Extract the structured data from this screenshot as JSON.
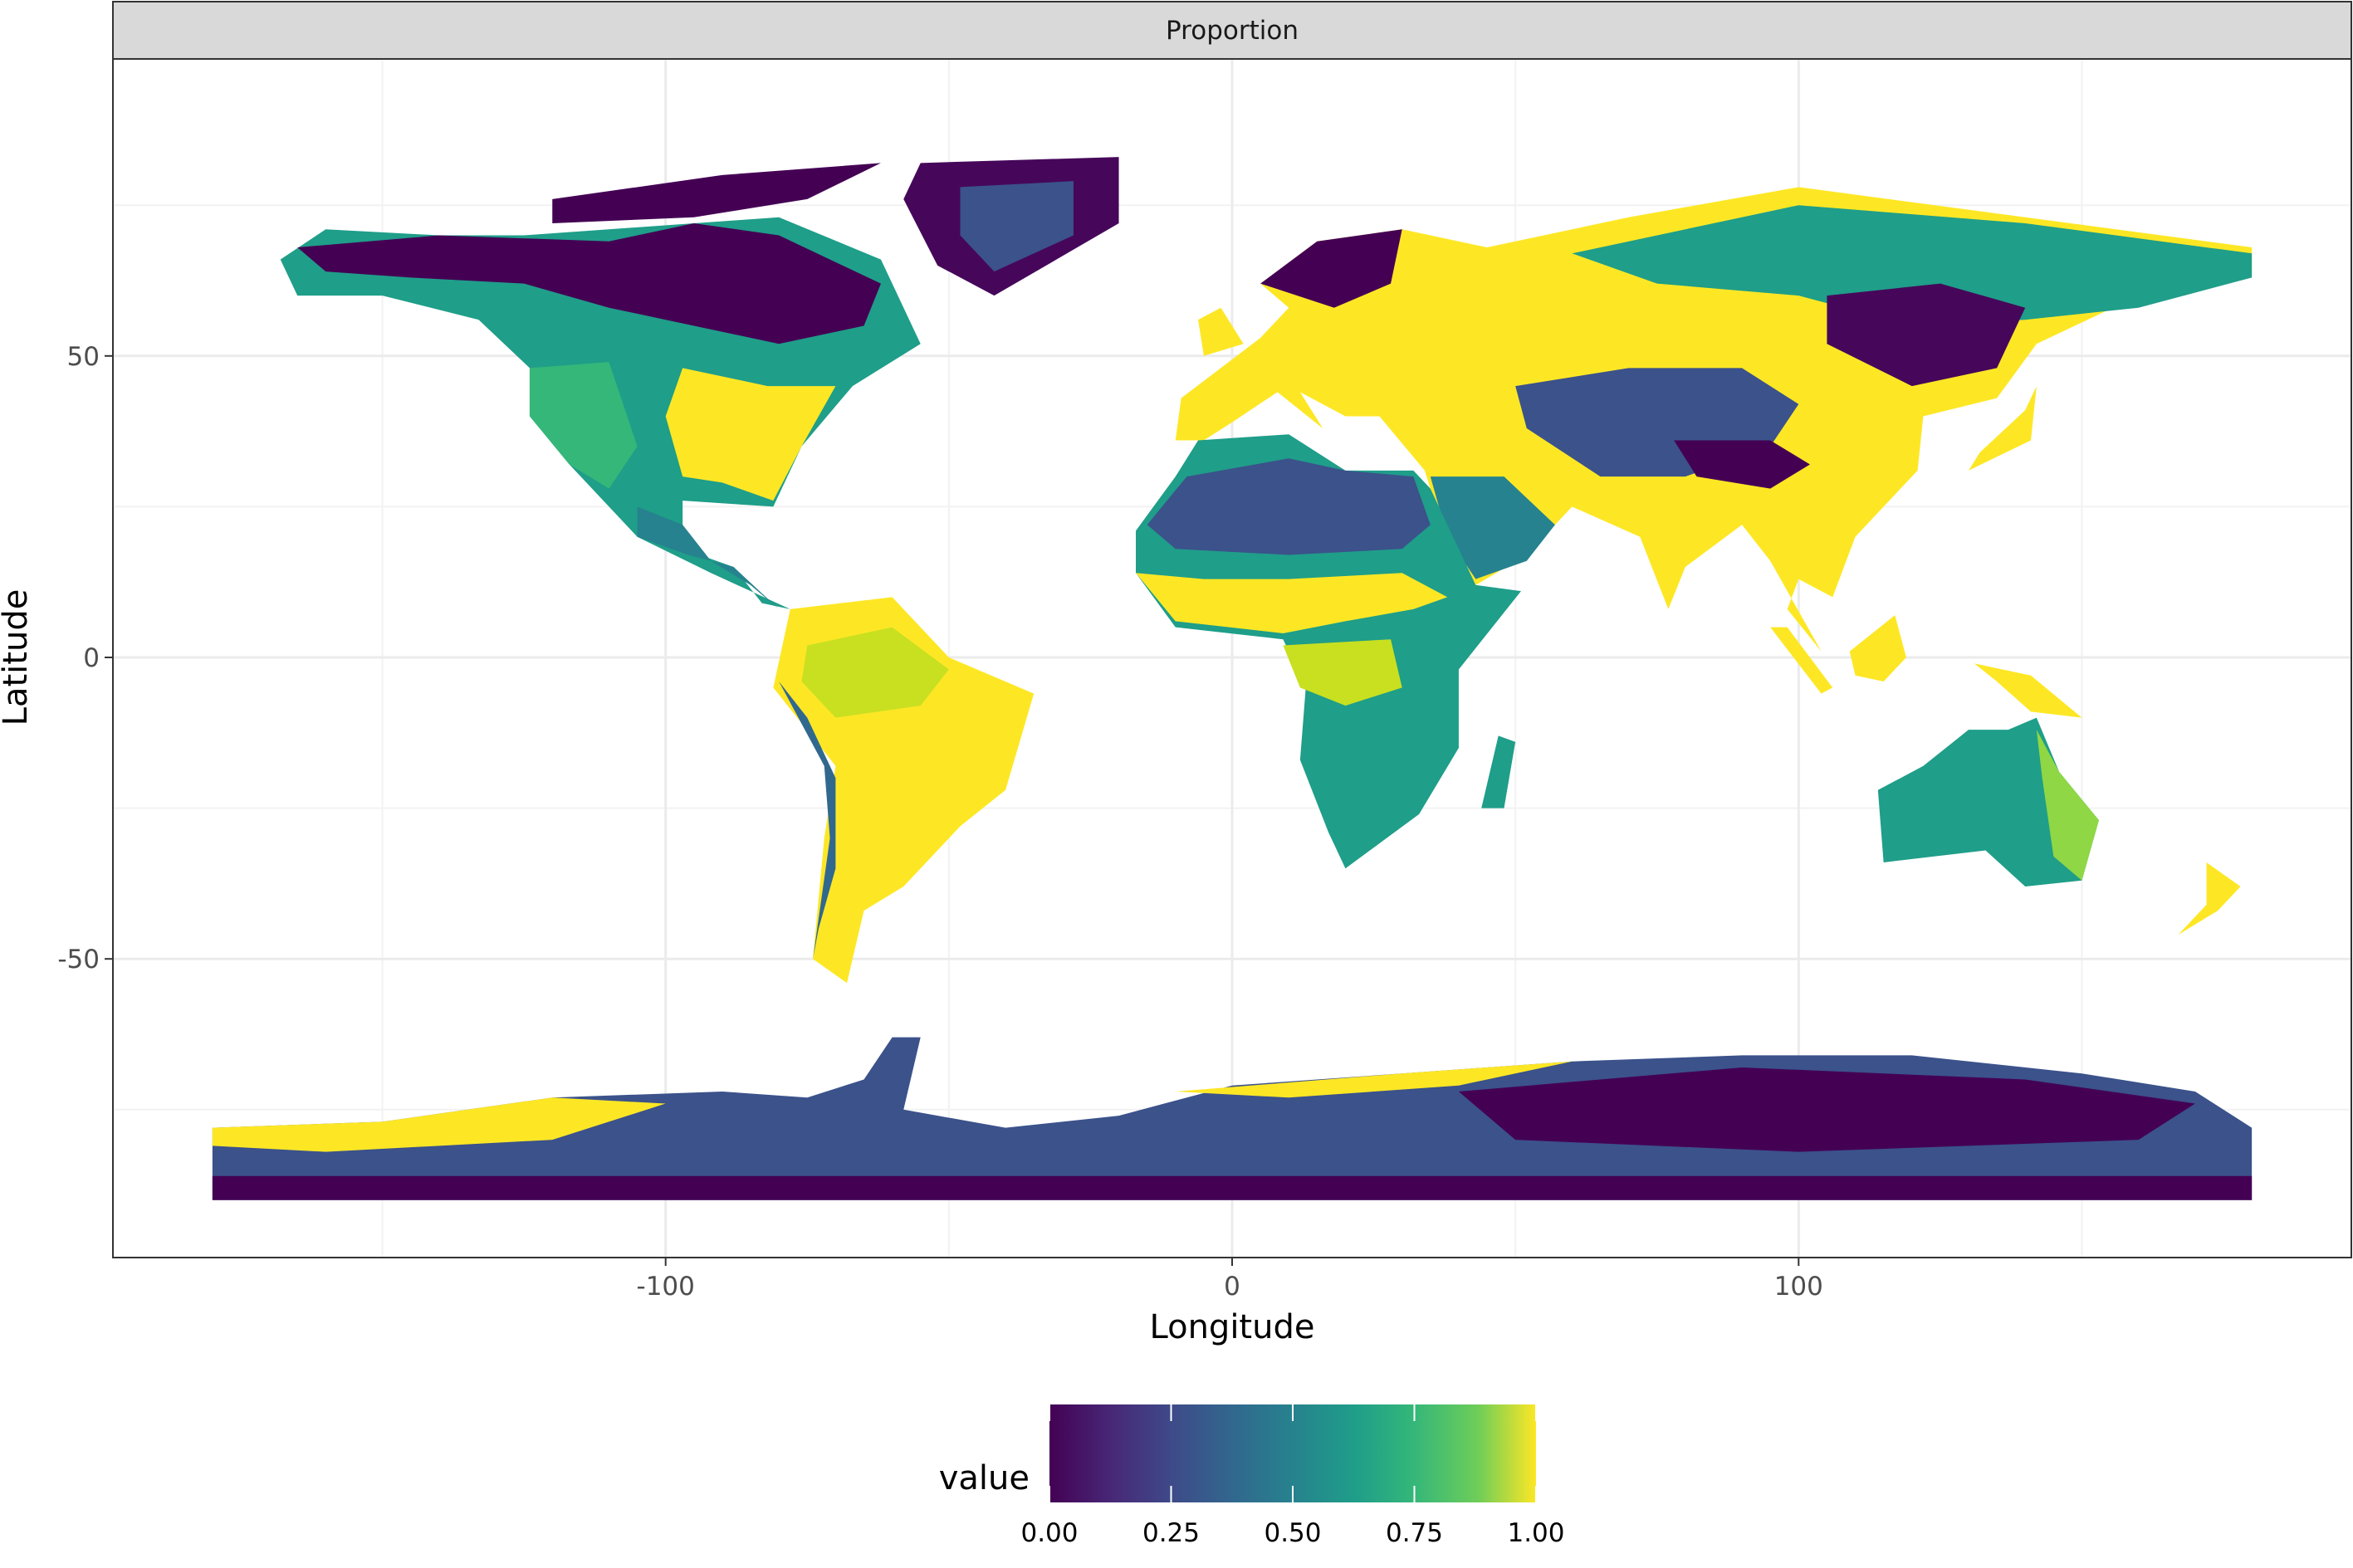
{
  "facet": {
    "label": "Proportion"
  },
  "chart_data": {
    "type": "heatmap",
    "title": "",
    "xlabel": "Longitude",
    "ylabel": "Latitude",
    "xlim": [
      -180,
      180
    ],
    "ylim": [
      -90,
      84
    ],
    "x_ticks": [
      -100,
      0,
      100
    ],
    "x_tick_labels": [
      "-100",
      "0",
      "100"
    ],
    "y_ticks": [
      -50,
      0,
      50
    ],
    "y_tick_labels": [
      "-50",
      "0",
      "50"
    ],
    "grid": true,
    "legend": {
      "title": "value",
      "placement": "bottom",
      "range": [
        0,
        1
      ],
      "breaks": [
        0,
        0.25,
        0.5,
        0.75,
        1
      ],
      "labels": [
        "0.00",
        "0.25",
        "0.50",
        "0.75",
        "1.00"
      ],
      "colorscale": "viridis",
      "colors": [
        "#440154",
        "#3B528B",
        "#21908C",
        "#5DC863",
        "#FDE725"
      ]
    }
  }
}
